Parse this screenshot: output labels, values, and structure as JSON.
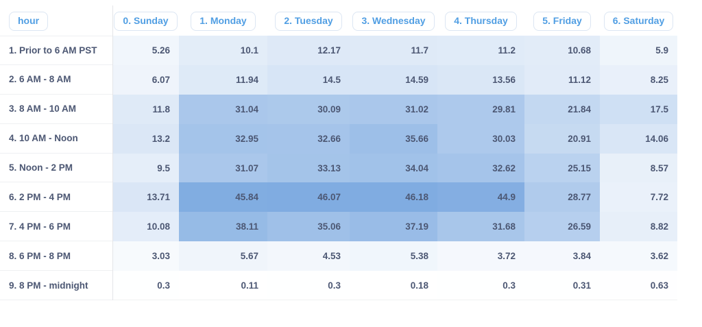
{
  "table": {
    "row_header_label": "hour"
  },
  "colors": {
    "accent_blue": "#509ee3",
    "pill_border": "#dce6f3",
    "text_dark": "#4c5773",
    "divider_gray": "#e4e5e8",
    "row_border_gray": "#eef0f2",
    "heat_min": "#ffffff",
    "heat_max": "#80ace1"
  },
  "chart_data": {
    "type": "heatmap",
    "title": "",
    "row_axis_label": "hour",
    "columns": [
      "0. Sunday",
      "1. Monday",
      "2. Tuesday",
      "3. Wednesday",
      "4. Thursday",
      "5. Friday",
      "6. Saturday"
    ],
    "rows": [
      "1. Prior to 6 AM PST",
      "2. 6 AM - 8 AM",
      "3. 8 AM - 10 AM",
      "4. 10 AM - Noon",
      "5. Noon - 2 PM",
      "6. 2 PM - 4 PM",
      "7. 4 PM - 6 PM",
      "8. 6 PM - 8 PM",
      "9. 8 PM - midnight"
    ],
    "values": [
      [
        5.26,
        10.1,
        12.17,
        11.7,
        11.2,
        10.68,
        5.9
      ],
      [
        6.07,
        11.94,
        14.5,
        14.59,
        13.56,
        11.12,
        8.25
      ],
      [
        11.8,
        31.04,
        30.09,
        31.02,
        29.81,
        21.84,
        17.5
      ],
      [
        13.2,
        32.95,
        32.66,
        35.66,
        30.03,
        20.91,
        14.06
      ],
      [
        9.5,
        31.07,
        33.13,
        34.04,
        32.62,
        25.15,
        8.57
      ],
      [
        13.71,
        45.84,
        46.07,
        46.18,
        44.9,
        28.77,
        7.72
      ],
      [
        10.08,
        38.11,
        35.06,
        37.19,
        31.68,
        26.59,
        8.82
      ],
      [
        3.03,
        5.67,
        4.53,
        5.38,
        3.72,
        3.84,
        3.62
      ],
      [
        0.3,
        0.11,
        0.3,
        0.18,
        0.3,
        0.31,
        0.63
      ]
    ],
    "value_range": [
      0.11,
      46.18
    ],
    "legend": "none",
    "grid": "off"
  }
}
